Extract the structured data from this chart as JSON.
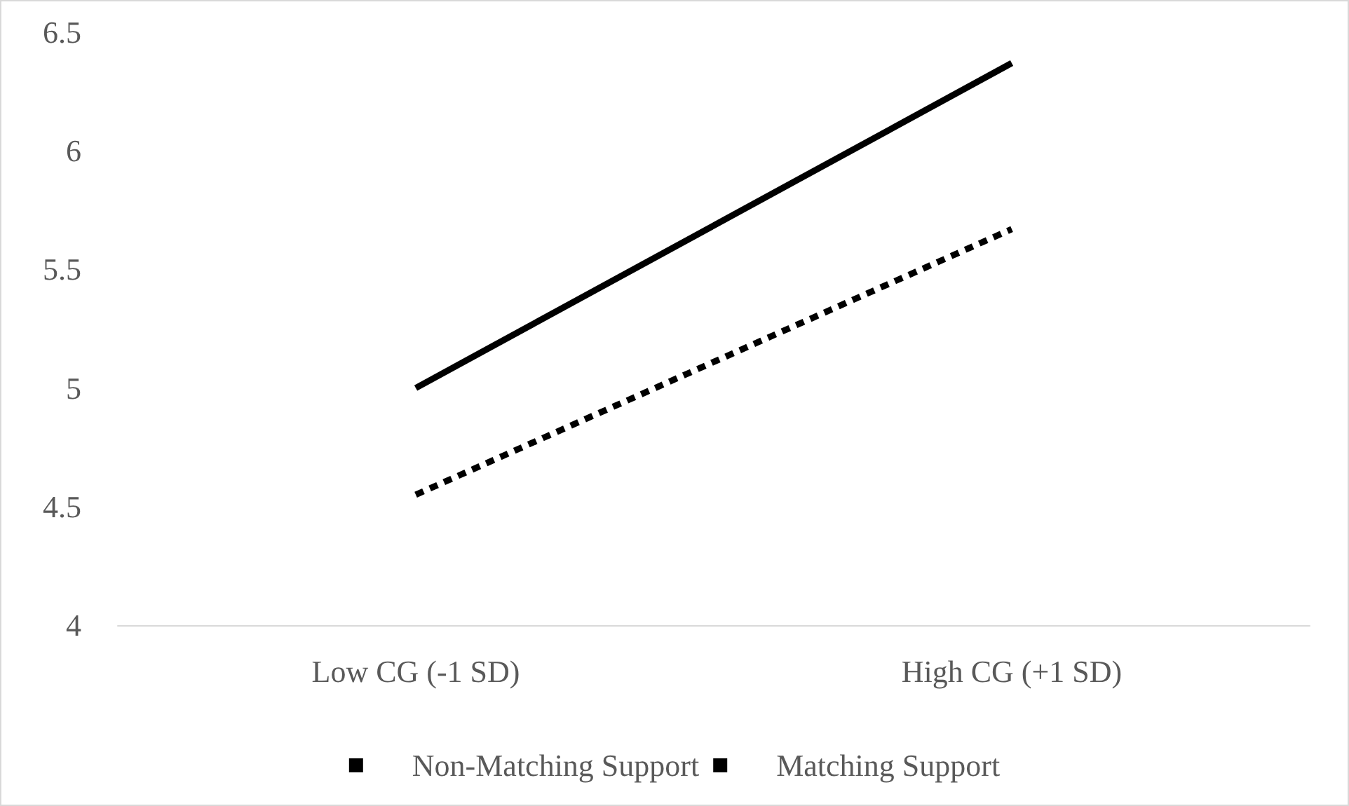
{
  "chart_data": {
    "type": "line",
    "categories": [
      "Low CG (-1 SD)",
      "High CG (+1 SD)"
    ],
    "series": [
      {
        "name": "Non-Matching Support",
        "color": "#000000",
        "line_style": "dashed",
        "values": [
          4.55,
          5.67
        ]
      },
      {
        "name": "Matching Support",
        "color": "#000000",
        "line_style": "solid",
        "values": [
          5.0,
          6.37
        ]
      }
    ],
    "ylim": [
      4,
      6.5
    ],
    "yticks": [
      4,
      4.5,
      5,
      5.5,
      6,
      6.5
    ],
    "grid": false,
    "legend": "bottom",
    "marker": "none"
  }
}
